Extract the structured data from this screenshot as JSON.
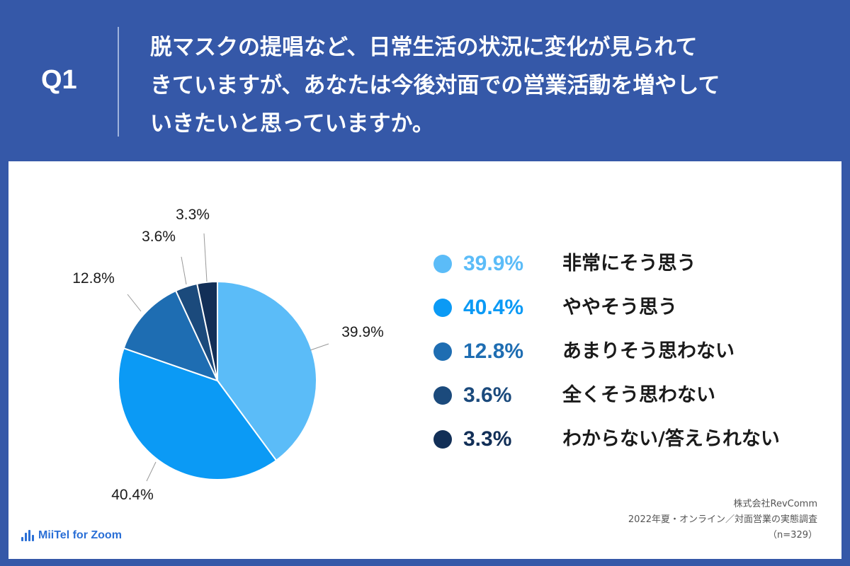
{
  "header": {
    "q_label": "Q1",
    "question_lines": [
      "脱マスクの提唱など、日常生活の状況に変化が見られて",
      "きていますが、あなたは今後対面での営業活動を増やして",
      "いきたいと思っていますか。"
    ]
  },
  "chart_data": {
    "type": "pie",
    "title": "",
    "slices": [
      {
        "label": "非常にそう思う",
        "value": 39.9,
        "display": "39.9%",
        "color": "#5bbcf8"
      },
      {
        "label": "ややそう思う",
        "value": 40.4,
        "display": "40.4%",
        "color": "#0b9af5"
      },
      {
        "label": "あまりそう思わない",
        "value": 12.8,
        "display": "12.8%",
        "color": "#1e6db2"
      },
      {
        "label": "全くそう思わない",
        "value": 3.6,
        "display": "3.6%",
        "color": "#1b4a7c"
      },
      {
        "label": "わからない/答えられない",
        "value": 3.3,
        "display": "3.3%",
        "color": "#122f57"
      }
    ],
    "start": "12 o'clock",
    "direction": "clockwise",
    "legend_position": "right"
  },
  "legend_pct_colors": [
    "#5bbcf8",
    "#0b9af5",
    "#1e6db2",
    "#1b4a7c",
    "#122f57"
  ],
  "footer": {
    "brand": "MiiTel for Zoom",
    "source_lines": [
      "株式会社RevComm",
      "2022年夏・オンライン／対面営業の実態調査",
      "（n=329）"
    ]
  },
  "colors": {
    "background": "#3558a8",
    "panel": "#ffffff",
    "brand": "#2a6fd6"
  }
}
